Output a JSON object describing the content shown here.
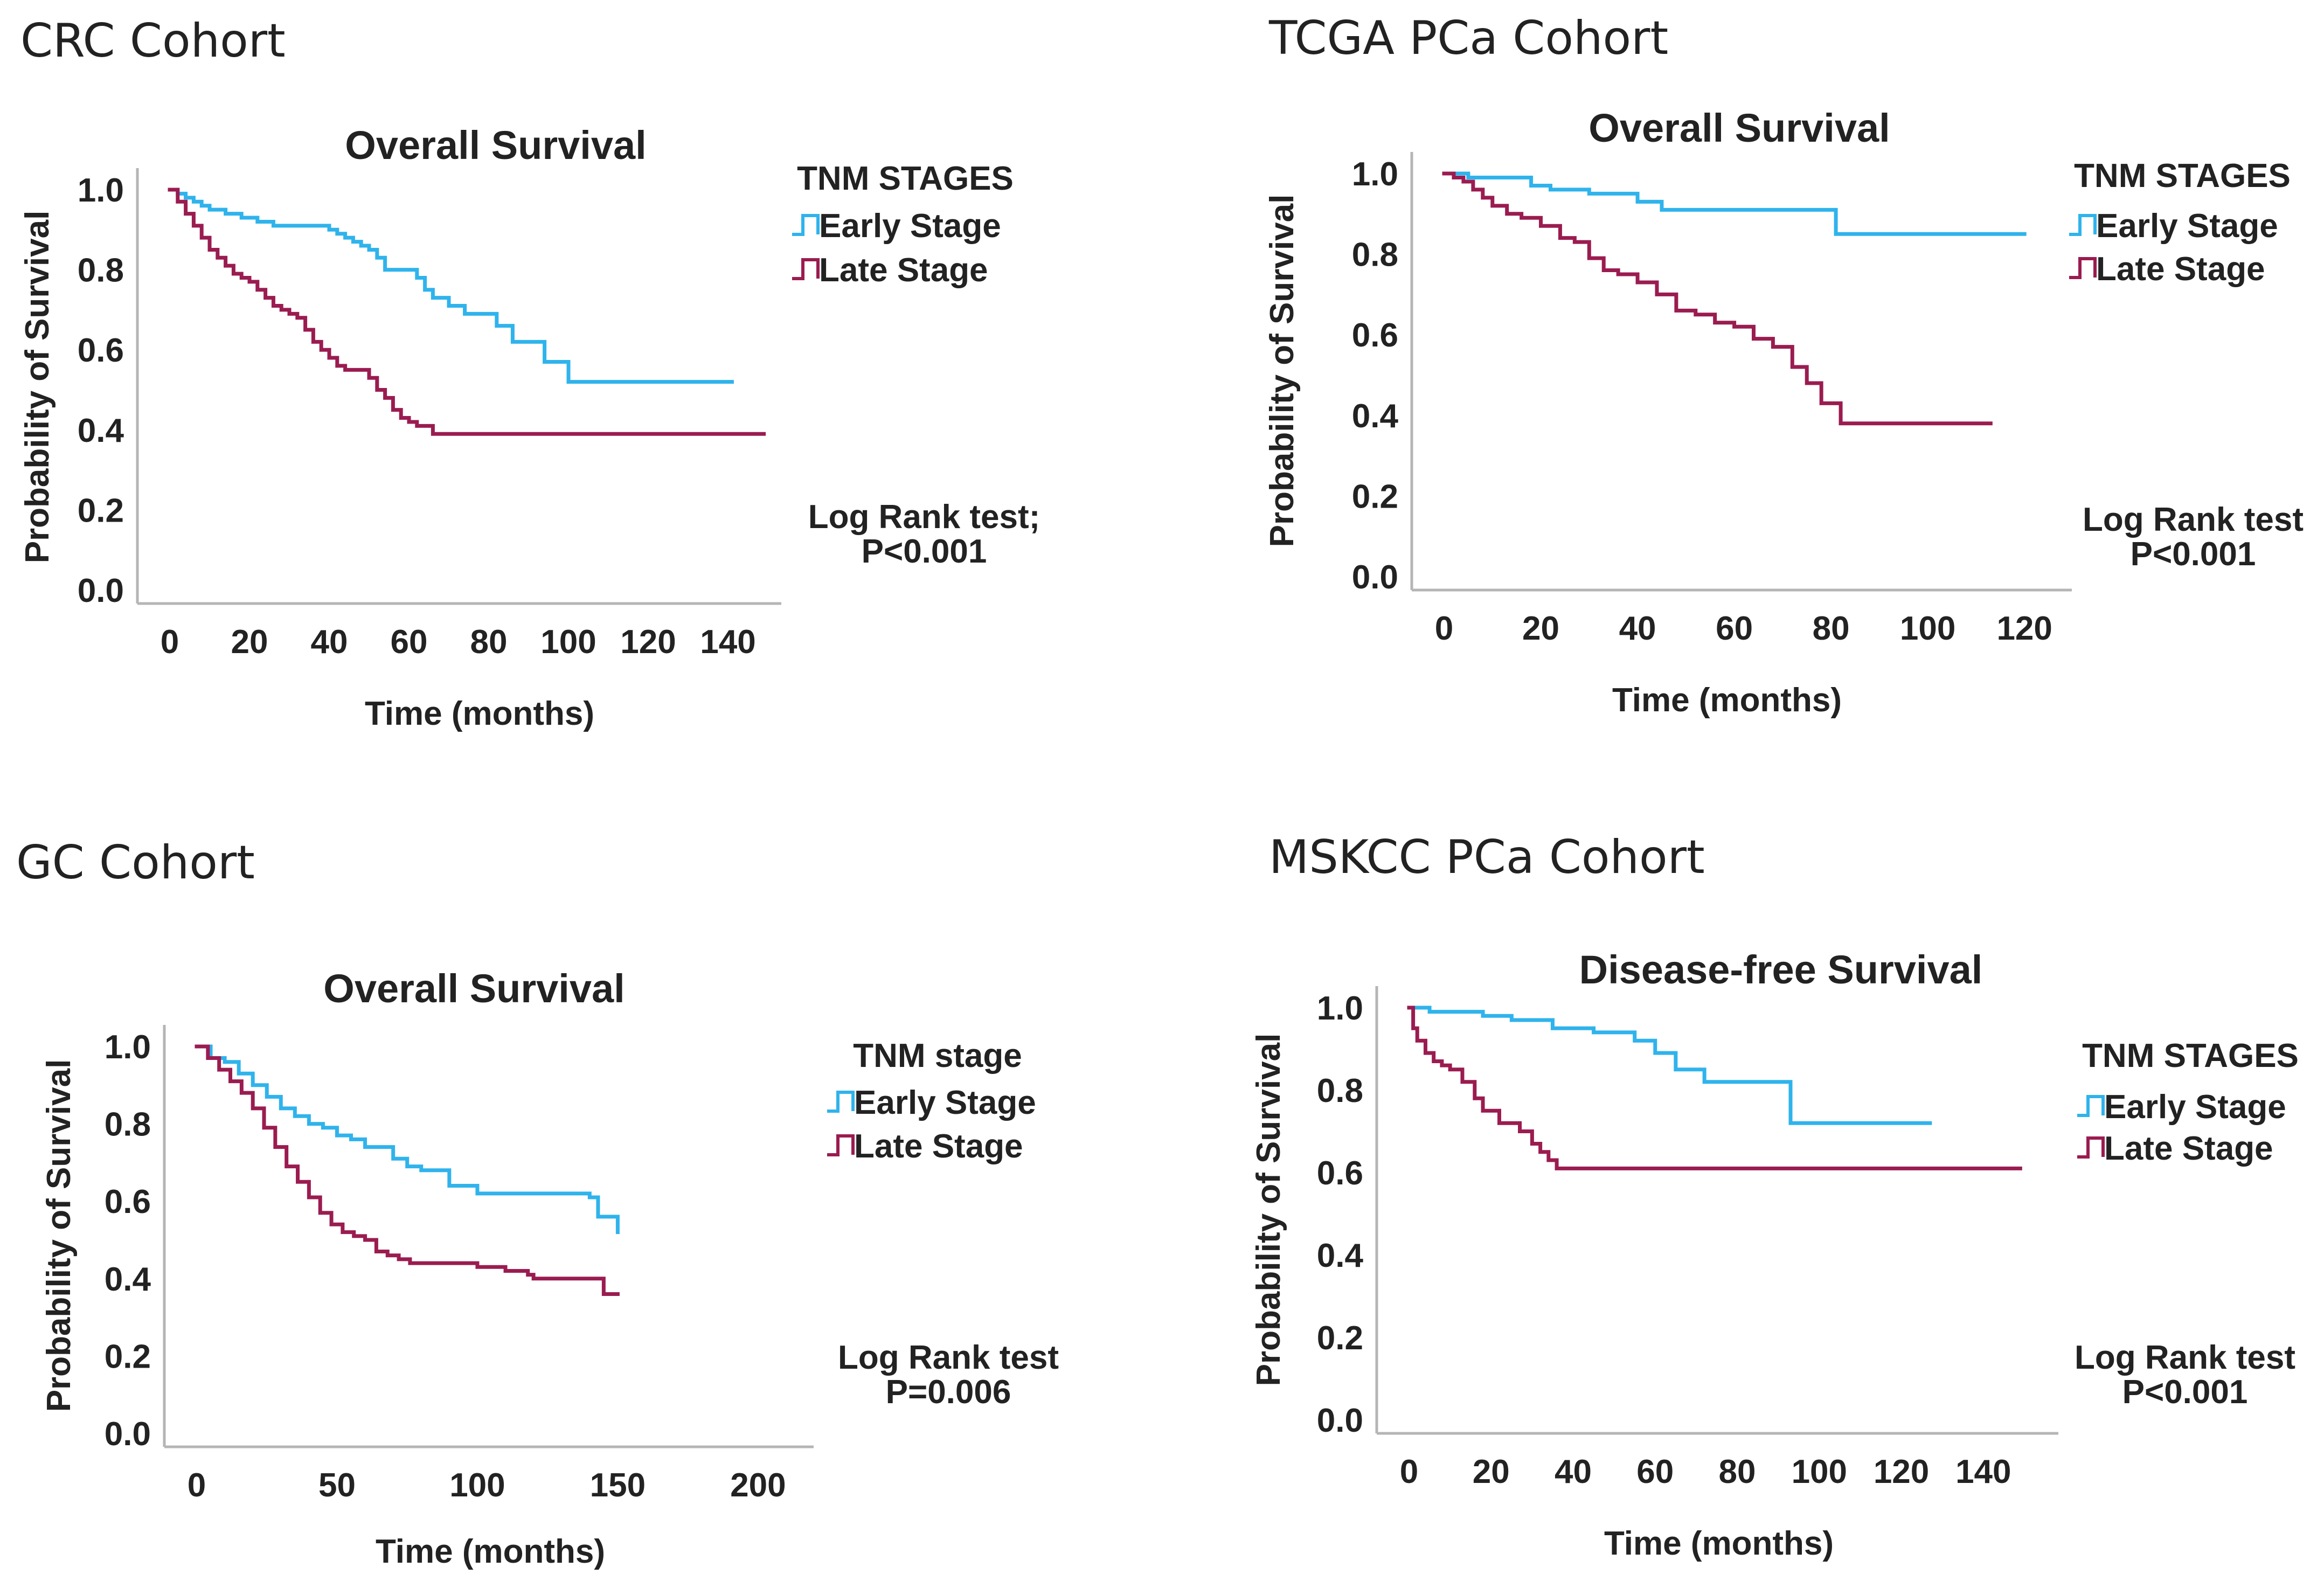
{
  "colors": {
    "early": "#2fb3ec",
    "late": "#9a1c50",
    "axis": "#b5b5b5",
    "text": "#222222"
  },
  "chart_data": [
    {
      "type": "line",
      "cohort_title": "CRC Cohort",
      "title": "Overall Survival",
      "xlabel": "Time (months)",
      "ylabel": "Probability of Survival",
      "xlim": [
        0,
        150
      ],
      "ylim": [
        0,
        1.0
      ],
      "xticks": [
        "0",
        "20",
        "40",
        "60",
        "80",
        "100",
        "120",
        "140"
      ],
      "yticks": [
        "0.0",
        "0.2",
        "0.4",
        "0.6",
        "0.8",
        "1.0"
      ],
      "legend_title": "TNM STAGES",
      "stat_text": [
        "Log Rank test;",
        "P<0.001"
      ],
      "series": [
        {
          "name": "Early Stage",
          "color_key": "early",
          "x": [
            0,
            2,
            4,
            6,
            8,
            10,
            14,
            18,
            22,
            26,
            30,
            34,
            38,
            40,
            42,
            44,
            46,
            48,
            50,
            52,
            54,
            58,
            62,
            64,
            66,
            70,
            74,
            78,
            82,
            86,
            90,
            94,
            98,
            100,
            110,
            120,
            130,
            141
          ],
          "y": [
            1.0,
            0.99,
            0.98,
            0.97,
            0.96,
            0.95,
            0.94,
            0.93,
            0.92,
            0.91,
            0.91,
            0.91,
            0.91,
            0.9,
            0.89,
            0.88,
            0.87,
            0.86,
            0.85,
            0.83,
            0.8,
            0.8,
            0.78,
            0.75,
            0.73,
            0.71,
            0.69,
            0.69,
            0.66,
            0.62,
            0.62,
            0.57,
            0.57,
            0.52,
            0.52,
            0.52,
            0.52,
            0.52
          ]
        },
        {
          "name": "Late Stage",
          "color_key": "late",
          "x": [
            0,
            2,
            4,
            6,
            8,
            10,
            12,
            14,
            16,
            18,
            20,
            22,
            24,
            26,
            28,
            30,
            32,
            34,
            36,
            38,
            40,
            42,
            44,
            46,
            48,
            50,
            52,
            54,
            56,
            58,
            60,
            62,
            64,
            66,
            80,
            100,
            120,
            149
          ],
          "y": [
            1.0,
            0.97,
            0.94,
            0.91,
            0.88,
            0.85,
            0.83,
            0.81,
            0.79,
            0.78,
            0.77,
            0.75,
            0.73,
            0.71,
            0.7,
            0.69,
            0.68,
            0.65,
            0.62,
            0.6,
            0.58,
            0.56,
            0.55,
            0.55,
            0.55,
            0.53,
            0.5,
            0.48,
            0.45,
            0.43,
            0.42,
            0.41,
            0.41,
            0.39,
            0.39,
            0.39,
            0.39,
            0.39
          ]
        }
      ]
    },
    {
      "type": "line",
      "cohort_title": "TCGA PCa Cohort",
      "title": "Overall Survival",
      "xlabel": "Time (months)",
      "ylabel": "Probability of Survival",
      "xlim": [
        0,
        127
      ],
      "ylim": [
        0,
        1.0
      ],
      "xticks": [
        "0",
        "20",
        "40",
        "60",
        "80",
        "100",
        "120"
      ],
      "yticks": [
        "0.0",
        "0.2",
        "0.4",
        "0.6",
        "0.8",
        "1.0"
      ],
      "legend_title": "TNM STAGES",
      "stat_text": [
        "Log Rank test",
        "P<0.001"
      ],
      "series": [
        {
          "name": "Early Stage",
          "color_key": "early",
          "x": [
            0,
            5,
            18,
            22,
            30,
            40,
            45,
            80,
            81,
            100,
            120
          ],
          "y": [
            1.0,
            0.99,
            0.97,
            0.96,
            0.95,
            0.93,
            0.91,
            0.91,
            0.85,
            0.85,
            0.85
          ]
        },
        {
          "name": "Late Stage",
          "color_key": "late",
          "x": [
            0,
            2,
            4,
            6,
            8,
            10,
            13,
            16,
            20,
            24,
            27,
            30,
            33,
            36,
            40,
            44,
            48,
            52,
            56,
            60,
            64,
            68,
            72,
            75,
            78,
            80,
            82,
            90,
            100,
            113
          ],
          "y": [
            1.0,
            0.99,
            0.98,
            0.96,
            0.94,
            0.92,
            0.9,
            0.89,
            0.87,
            0.84,
            0.83,
            0.79,
            0.76,
            0.75,
            0.73,
            0.7,
            0.66,
            0.65,
            0.63,
            0.62,
            0.59,
            0.57,
            0.52,
            0.48,
            0.43,
            0.43,
            0.38,
            0.38,
            0.38,
            0.38
          ]
        }
      ]
    },
    {
      "type": "line",
      "cohort_title": "GC Cohort",
      "title": "Overall Survival",
      "xlabel": "Time (months)",
      "ylabel": "Probability of Survival",
      "xlim": [
        0,
        215
      ],
      "ylim": [
        0,
        1.0
      ],
      "xticks": [
        "0",
        "50",
        "100",
        "150",
        "200"
      ],
      "yticks": [
        "0.0",
        "0.2",
        "0.4",
        "0.6",
        "0.8",
        "1.0"
      ],
      "legend_title": "TNM stage",
      "stat_text": [
        "Log Rank test",
        "P=0.006"
      ],
      "series": [
        {
          "name": "Early Stage",
          "color_key": "early",
          "x": [
            0,
            5,
            10,
            15,
            20,
            25,
            30,
            35,
            40,
            45,
            50,
            55,
            60,
            65,
            70,
            75,
            80,
            85,
            90,
            95,
            100,
            110,
            120,
            130,
            140,
            143,
            150
          ],
          "y": [
            1.0,
            0.97,
            0.96,
            0.93,
            0.9,
            0.87,
            0.84,
            0.82,
            0.8,
            0.79,
            0.77,
            0.76,
            0.74,
            0.74,
            0.71,
            0.69,
            0.68,
            0.68,
            0.64,
            0.64,
            0.62,
            0.62,
            0.62,
            0.62,
            0.61,
            0.56,
            0.52
          ]
        },
        {
          "name": "Late Stage",
          "color_key": "late",
          "x": [
            0,
            4,
            8,
            12,
            16,
            20,
            24,
            28,
            32,
            36,
            40,
            44,
            48,
            52,
            56,
            60,
            64,
            68,
            72,
            76,
            80,
            90,
            100,
            110,
            118,
            120,
            130,
            140,
            145,
            150
          ],
          "y": [
            1.0,
            0.97,
            0.94,
            0.91,
            0.88,
            0.84,
            0.79,
            0.74,
            0.69,
            0.65,
            0.61,
            0.57,
            0.54,
            0.52,
            0.51,
            0.5,
            0.47,
            0.46,
            0.45,
            0.44,
            0.44,
            0.44,
            0.43,
            0.42,
            0.41,
            0.4,
            0.4,
            0.4,
            0.36,
            0.36
          ]
        }
      ]
    },
    {
      "type": "line",
      "cohort_title": "MSKCC PCa Cohort",
      "title": "Disease-free Survival",
      "xlabel": "Time (months)",
      "ylabel": "Probability of Survival",
      "xlim": [
        0,
        155
      ],
      "ylim": [
        0,
        1.0
      ],
      "xticks": [
        "0",
        "20",
        "40",
        "60",
        "80",
        "100",
        "120",
        "140"
      ],
      "yticks": [
        "0.0",
        "0.2",
        "0.4",
        "0.6",
        "0.8",
        "1.0"
      ],
      "legend_title": "TNM STAGES",
      "stat_text": [
        "Log Rank test",
        "P<0.001"
      ],
      "series": [
        {
          "name": "Early Stage",
          "color_key": "early",
          "x": [
            0,
            5,
            18,
            25,
            35,
            45,
            55,
            60,
            65,
            68,
            72,
            90,
            93,
            110,
            127
          ],
          "y": [
            1.0,
            0.99,
            0.98,
            0.97,
            0.95,
            0.94,
            0.92,
            0.89,
            0.85,
            0.85,
            0.82,
            0.82,
            0.72,
            0.72,
            0.72
          ]
        },
        {
          "name": "Late Stage",
          "color_key": "late",
          "x": [
            0,
            1,
            2,
            4,
            6,
            8,
            10,
            13,
            16,
            18,
            22,
            27,
            30,
            32,
            34,
            36,
            40,
            60,
            100,
            149
          ],
          "y": [
            1.0,
            0.95,
            0.92,
            0.89,
            0.87,
            0.86,
            0.85,
            0.82,
            0.78,
            0.75,
            0.72,
            0.7,
            0.67,
            0.65,
            0.63,
            0.61,
            0.61,
            0.61,
            0.61,
            0.61
          ]
        }
      ]
    }
  ]
}
